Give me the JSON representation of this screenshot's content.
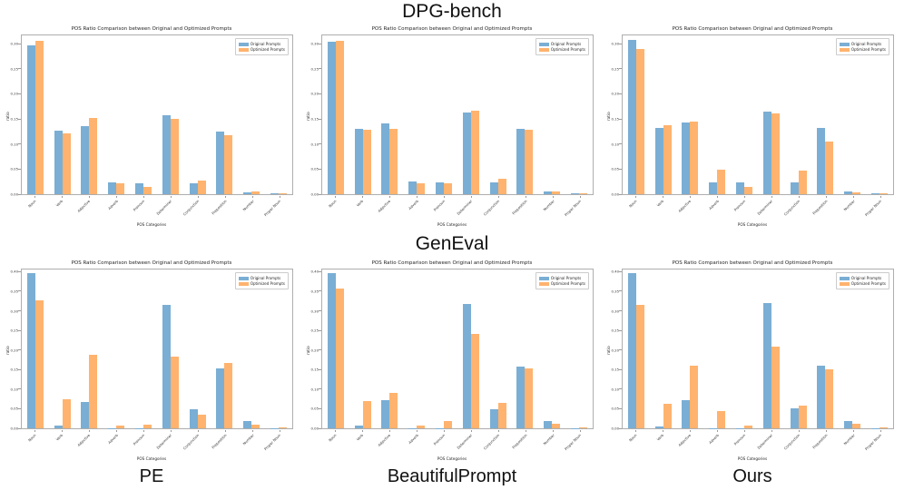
{
  "headers": {
    "top": "DPG-bench",
    "middle": "GenEval"
  },
  "method_labels": [
    "PE",
    "BeautifulPrompt",
    "Ours"
  ],
  "colors": {
    "original_prompts": "#7aaed4",
    "optimized_prompts": "#ffb36e"
  },
  "chart_data": [
    {
      "type": "bar",
      "dataset": "DPG-bench",
      "method": "PE",
      "title": "POS Ratio Comparison between Original and Optimized Prompts",
      "xlabel": "POS Categories",
      "ylabel": "ratio",
      "legend": [
        "Original Prompts",
        "Optimized Prompts"
      ],
      "legend_position": "upper right",
      "grid": false,
      "categories": [
        "Noun",
        "Verb",
        "Adjective",
        "Adverb",
        "Pronoun",
        "Determiner",
        "Conjunction",
        "Preposition",
        "Number",
        "Proper Noun"
      ],
      "yticks": [
        0.0,
        0.05,
        0.1,
        0.15,
        0.2,
        0.25,
        0.3
      ],
      "ylim": [
        0,
        0.32
      ],
      "series": [
        {
          "name": "Original Prompts",
          "values": [
            0.296,
            0.127,
            0.136,
            0.023,
            0.022,
            0.158,
            0.022,
            0.125,
            0.004,
            0.001
          ]
        },
        {
          "name": "Optimized Prompts",
          "values": [
            0.306,
            0.122,
            0.151,
            0.021,
            0.014,
            0.15,
            0.028,
            0.117,
            0.005,
            0.001
          ]
        }
      ]
    },
    {
      "type": "bar",
      "dataset": "DPG-bench",
      "method": "BeautifulPrompt",
      "title": "POS Ratio Comparison between Original and Optimized Prompts",
      "xlabel": "POS Categories",
      "ylabel": "ratio",
      "legend": [
        "Original Prompts",
        "Optimized Prompts"
      ],
      "legend_position": "upper right",
      "grid": false,
      "categories": [
        "Noun",
        "Verb",
        "Adjective",
        "Adverb",
        "Pronoun",
        "Determiner",
        "Conjunction",
        "Preposition",
        "Number",
        "Proper Noun"
      ],
      "yticks": [
        0.0,
        0.05,
        0.1,
        0.15,
        0.2,
        0.25,
        0.3
      ],
      "ylim": [
        0,
        0.32
      ],
      "series": [
        {
          "name": "Original Prompts",
          "values": [
            0.303,
            0.13,
            0.141,
            0.025,
            0.024,
            0.162,
            0.024,
            0.13,
            0.005,
            0.001
          ]
        },
        {
          "name": "Optimized Prompts",
          "values": [
            0.306,
            0.129,
            0.131,
            0.022,
            0.022,
            0.166,
            0.031,
            0.128,
            0.005,
            0.001
          ]
        }
      ]
    },
    {
      "type": "bar",
      "dataset": "DPG-bench",
      "method": "Ours",
      "title": "POS Ratio Comparison between Original and Optimized Prompts",
      "xlabel": "POS Categories",
      "ylabel": "ratio",
      "legend": [
        "Original Prompts",
        "Optimized Prompts"
      ],
      "legend_position": "upper right",
      "grid": false,
      "categories": [
        "Noun",
        "Verb",
        "Adjective",
        "Adverb",
        "Pronoun",
        "Determiner",
        "Conjunction",
        "Preposition",
        "Number",
        "Proper Noun"
      ],
      "yticks": [
        0.0,
        0.05,
        0.1,
        0.15,
        0.2,
        0.25,
        0.3
      ],
      "ylim": [
        0,
        0.32
      ],
      "series": [
        {
          "name": "Original Prompts",
          "values": [
            0.307,
            0.132,
            0.142,
            0.024,
            0.023,
            0.164,
            0.023,
            0.132,
            0.005,
            0.001
          ]
        },
        {
          "name": "Optimized Prompts",
          "values": [
            0.29,
            0.138,
            0.145,
            0.049,
            0.014,
            0.161,
            0.047,
            0.104,
            0.004,
            0.001
          ]
        }
      ]
    },
    {
      "type": "bar",
      "dataset": "GenEval",
      "method": "PE",
      "title": "POS Ratio Comparison between Original and Optimized Prompts",
      "xlabel": "POS Categories",
      "ylabel": "ratio",
      "legend": [
        "Original Prompts",
        "Optimized Prompts"
      ],
      "legend_position": "upper right",
      "grid": false,
      "categories": [
        "Noun",
        "Verb",
        "Adjective",
        "Adverb",
        "Pronoun",
        "Determiner",
        "Conjunction",
        "Preposition",
        "Number",
        "Proper Noun"
      ],
      "yticks": [
        0.0,
        0.05,
        0.1,
        0.15,
        0.2,
        0.25,
        0.3,
        0.35,
        0.4
      ],
      "ylim": [
        0,
        0.41
      ],
      "series": [
        {
          "name": "Original Prompts",
          "values": [
            0.395,
            0.008,
            0.067,
            0.001,
            0.001,
            0.315,
            0.048,
            0.154,
            0.019,
            0.001
          ]
        },
        {
          "name": "Optimized Prompts",
          "values": [
            0.327,
            0.075,
            0.187,
            0.007,
            0.009,
            0.182,
            0.035,
            0.167,
            0.009,
            0.002
          ]
        }
      ]
    },
    {
      "type": "bar",
      "dataset": "GenEval",
      "method": "BeautifulPrompt",
      "title": "POS Ratio Comparison between Original and Optimized Prompts",
      "xlabel": "POS Categories",
      "ylabel": "ratio",
      "legend": [
        "Original Prompts",
        "Optimized Prompts"
      ],
      "legend_position": "upper right",
      "grid": false,
      "categories": [
        "Noun",
        "Verb",
        "Adjective",
        "Adverb",
        "Pronoun",
        "Determiner",
        "Conjunction",
        "Preposition",
        "Number",
        "Proper Noun"
      ],
      "yticks": [
        0.0,
        0.05,
        0.1,
        0.15,
        0.2,
        0.25,
        0.3,
        0.35,
        0.4
      ],
      "ylim": [
        0,
        0.41
      ],
      "series": [
        {
          "name": "Original Prompts",
          "values": [
            0.396,
            0.006,
            0.071,
            0.001,
            0.001,
            0.318,
            0.048,
            0.158,
            0.018,
            0.001
          ]
        },
        {
          "name": "Optimized Prompts",
          "values": [
            0.356,
            0.069,
            0.09,
            0.008,
            0.018,
            0.24,
            0.064,
            0.154,
            0.011,
            0.002
          ]
        }
      ]
    },
    {
      "type": "bar",
      "dataset": "GenEval",
      "method": "Ours",
      "title": "POS Ratio Comparison between Original and Optimized Prompts",
      "xlabel": "POS Categories",
      "ylabel": "ratio",
      "legend": [
        "Original Prompts",
        "Optimized Prompts"
      ],
      "legend_position": "upper right",
      "grid": false,
      "categories": [
        "Noun",
        "Verb",
        "Adjective",
        "Adverb",
        "Pronoun",
        "Determiner",
        "Conjunction",
        "Preposition",
        "Number",
        "Proper Noun"
      ],
      "yticks": [
        0.0,
        0.05,
        0.1,
        0.15,
        0.2,
        0.25,
        0.3,
        0.35,
        0.4
      ],
      "ylim": [
        0,
        0.41
      ],
      "series": [
        {
          "name": "Original Prompts",
          "values": [
            0.397,
            0.005,
            0.072,
            0.001,
            0.001,
            0.319,
            0.05,
            0.16,
            0.018,
            0.001
          ]
        },
        {
          "name": "Optimized Prompts",
          "values": [
            0.315,
            0.062,
            0.159,
            0.044,
            0.007,
            0.208,
            0.058,
            0.151,
            0.011,
            0.002
          ]
        }
      ]
    }
  ]
}
